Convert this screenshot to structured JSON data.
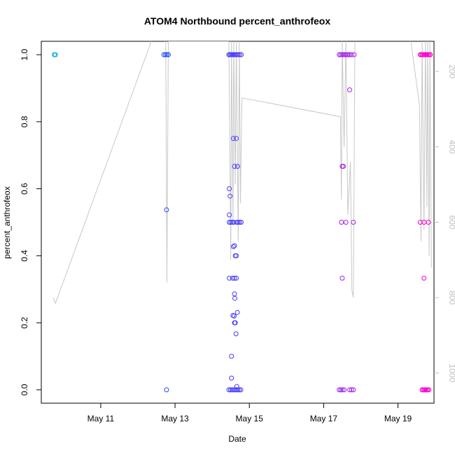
{
  "chart_data": {
    "type": "scatter",
    "title": "ATOM4 Northbound percent_anthrofeox",
    "xlabel": "Date",
    "ylabel": "percent_anthrofeox",
    "xlim": [
      9.4,
      19.97
    ],
    "ylim": [
      -0.04,
      1.04
    ],
    "x_ticks": [
      {
        "value": 11,
        "label": "May 11"
      },
      {
        "value": 13,
        "label": "May 13"
      },
      {
        "value": 15,
        "label": "May 15"
      },
      {
        "value": 17,
        "label": "May 17"
      },
      {
        "value": 19,
        "label": "May 19"
      }
    ],
    "y_ticks": [
      {
        "value": 0.0,
        "label": "0.0"
      },
      {
        "value": 0.2,
        "label": "0.2"
      },
      {
        "value": 0.4,
        "label": "0.4"
      },
      {
        "value": 0.6,
        "label": "0.6"
      },
      {
        "value": 0.8,
        "label": "0.8"
      },
      {
        "value": 1.0,
        "label": "1.0"
      }
    ],
    "secondary_axis": {
      "side": "right",
      "range": [
        1080,
        120
      ],
      "ticks": [
        {
          "value": 200,
          "label": "200"
        },
        {
          "value": 400,
          "label": "400"
        },
        {
          "value": 600,
          "label": "600"
        },
        {
          "value": 800,
          "label": "800"
        },
        {
          "value": 1000,
          "label": "1000"
        }
      ],
      "line_color": "#c8c8c8",
      "line_points": [
        [
          9.72,
          800
        ],
        [
          9.78,
          815
        ],
        [
          12.4,
          110
        ],
        [
          12.75,
          120
        ],
        [
          12.78,
          760
        ],
        [
          12.82,
          120
        ],
        [
          14.45,
          120
        ],
        [
          14.5,
          700
        ],
        [
          14.52,
          120
        ],
        [
          14.56,
          600
        ],
        [
          14.58,
          120
        ],
        [
          14.62,
          500
        ],
        [
          14.65,
          120
        ],
        [
          14.7,
          650
        ],
        [
          14.73,
          120
        ],
        [
          14.76,
          550
        ],
        [
          14.8,
          270
        ],
        [
          17.45,
          320
        ],
        [
          17.48,
          540
        ],
        [
          17.5,
          120
        ],
        [
          17.55,
          400
        ],
        [
          17.6,
          120
        ],
        [
          17.65,
          580
        ],
        [
          17.72,
          440
        ],
        [
          17.76,
          780
        ],
        [
          17.8,
          800
        ],
        [
          17.84,
          120
        ],
        [
          17.95,
          100
        ],
        [
          19.25,
          50
        ],
        [
          19.58,
          290
        ],
        [
          19.62,
          650
        ],
        [
          19.65,
          120
        ],
        [
          19.7,
          620
        ],
        [
          19.74,
          120
        ],
        [
          19.78,
          560
        ],
        [
          19.8,
          120
        ],
        [
          19.84,
          690
        ],
        [
          19.86,
          120
        ],
        [
          19.9,
          720
        ]
      ]
    },
    "points": [
      {
        "x": 9.75,
        "y": 1.0
      },
      {
        "x": 9.78,
        "y": 1.0
      },
      {
        "x": 12.7,
        "y": 1.0
      },
      {
        "x": 12.74,
        "y": 1.0
      },
      {
        "x": 12.78,
        "y": 1.0
      },
      {
        "x": 12.82,
        "y": 1.0
      },
      {
        "x": 12.77,
        "y": 0.537
      },
      {
        "x": 12.77,
        "y": 0.0
      },
      {
        "x": 14.45,
        "y": 1.0
      },
      {
        "x": 14.48,
        "y": 1.0
      },
      {
        "x": 14.51,
        "y": 1.0
      },
      {
        "x": 14.54,
        "y": 1.0
      },
      {
        "x": 14.57,
        "y": 1.0
      },
      {
        "x": 14.6,
        "y": 1.0
      },
      {
        "x": 14.63,
        "y": 1.0
      },
      {
        "x": 14.66,
        "y": 1.0
      },
      {
        "x": 14.7,
        "y": 1.0
      },
      {
        "x": 14.74,
        "y": 1.0
      },
      {
        "x": 14.78,
        "y": 1.0
      },
      {
        "x": 14.57,
        "y": 0.75
      },
      {
        "x": 14.65,
        "y": 0.75
      },
      {
        "x": 14.6,
        "y": 0.667
      },
      {
        "x": 14.68,
        "y": 0.667
      },
      {
        "x": 14.46,
        "y": 0.6
      },
      {
        "x": 14.48,
        "y": 0.578
      },
      {
        "x": 14.46,
        "y": 0.522
      },
      {
        "x": 14.46,
        "y": 0.5
      },
      {
        "x": 14.5,
        "y": 0.5
      },
      {
        "x": 14.54,
        "y": 0.5
      },
      {
        "x": 14.58,
        "y": 0.5
      },
      {
        "x": 14.66,
        "y": 0.5
      },
      {
        "x": 14.7,
        "y": 0.5
      },
      {
        "x": 14.74,
        "y": 0.5
      },
      {
        "x": 14.78,
        "y": 0.5
      },
      {
        "x": 14.57,
        "y": 0.427
      },
      {
        "x": 14.6,
        "y": 0.43
      },
      {
        "x": 14.62,
        "y": 0.4
      },
      {
        "x": 14.65,
        "y": 0.4
      },
      {
        "x": 14.46,
        "y": 0.333
      },
      {
        "x": 14.55,
        "y": 0.333
      },
      {
        "x": 14.6,
        "y": 0.333
      },
      {
        "x": 14.65,
        "y": 0.333
      },
      {
        "x": 14.6,
        "y": 0.286
      },
      {
        "x": 14.61,
        "y": 0.273
      },
      {
        "x": 14.68,
        "y": 0.231
      },
      {
        "x": 14.56,
        "y": 0.222
      },
      {
        "x": 14.59,
        "y": 0.22
      },
      {
        "x": 14.6,
        "y": 0.2
      },
      {
        "x": 14.62,
        "y": 0.2
      },
      {
        "x": 14.64,
        "y": 0.167
      },
      {
        "x": 14.52,
        "y": 0.1
      },
      {
        "x": 14.52,
        "y": 0.035
      },
      {
        "x": 14.66,
        "y": 0.01
      },
      {
        "x": 14.45,
        "y": 0.0
      },
      {
        "x": 14.49,
        "y": 0.0
      },
      {
        "x": 14.53,
        "y": 0.0
      },
      {
        "x": 14.57,
        "y": 0.0
      },
      {
        "x": 14.61,
        "y": 0.0
      },
      {
        "x": 14.65,
        "y": 0.0
      },
      {
        "x": 14.69,
        "y": 0.0
      },
      {
        "x": 14.73,
        "y": 0.0
      },
      {
        "x": 14.77,
        "y": 0.0
      },
      {
        "x": 17.42,
        "y": 1.0
      },
      {
        "x": 17.46,
        "y": 1.0
      },
      {
        "x": 17.5,
        "y": 1.0
      },
      {
        "x": 17.54,
        "y": 1.0
      },
      {
        "x": 17.58,
        "y": 1.0
      },
      {
        "x": 17.62,
        "y": 1.0
      },
      {
        "x": 17.66,
        "y": 1.0
      },
      {
        "x": 17.7,
        "y": 1.0
      },
      {
        "x": 17.75,
        "y": 1.0
      },
      {
        "x": 17.82,
        "y": 1.0
      },
      {
        "x": 17.7,
        "y": 0.895
      },
      {
        "x": 17.5,
        "y": 0.667
      },
      {
        "x": 17.53,
        "y": 0.667
      },
      {
        "x": 17.48,
        "y": 0.5
      },
      {
        "x": 17.6,
        "y": 0.5
      },
      {
        "x": 17.8,
        "y": 0.5
      },
      {
        "x": 17.5,
        "y": 0.333
      },
      {
        "x": 17.42,
        "y": 0.0
      },
      {
        "x": 17.46,
        "y": 0.0
      },
      {
        "x": 17.5,
        "y": 0.0
      },
      {
        "x": 17.55,
        "y": 0.0
      },
      {
        "x": 17.7,
        "y": 0.0
      },
      {
        "x": 17.75,
        "y": 0.0
      },
      {
        "x": 17.8,
        "y": 0.0
      },
      {
        "x": 19.6,
        "y": 1.0
      },
      {
        "x": 19.63,
        "y": 1.0
      },
      {
        "x": 19.66,
        "y": 1.0
      },
      {
        "x": 19.69,
        "y": 1.0
      },
      {
        "x": 19.72,
        "y": 1.0
      },
      {
        "x": 19.75,
        "y": 1.0
      },
      {
        "x": 19.78,
        "y": 1.0
      },
      {
        "x": 19.81,
        "y": 1.0
      },
      {
        "x": 19.84,
        "y": 1.0
      },
      {
        "x": 19.87,
        "y": 1.0
      },
      {
        "x": 19.6,
        "y": 0.5
      },
      {
        "x": 19.7,
        "y": 0.5
      },
      {
        "x": 19.82,
        "y": 0.5
      },
      {
        "x": 19.7,
        "y": 0.333
      },
      {
        "x": 19.65,
        "y": 0.0
      },
      {
        "x": 19.68,
        "y": 0.0
      },
      {
        "x": 19.71,
        "y": 0.0
      },
      {
        "x": 19.74,
        "y": 0.0
      },
      {
        "x": 19.77,
        "y": 0.0
      },
      {
        "x": 19.8,
        "y": 0.0
      },
      {
        "x": 19.83,
        "y": 0.0
      }
    ],
    "color_gradient": [
      "#00aadd",
      "#2244ff",
      "#7733ee",
      "#ff00cc"
    ],
    "grid": false
  }
}
